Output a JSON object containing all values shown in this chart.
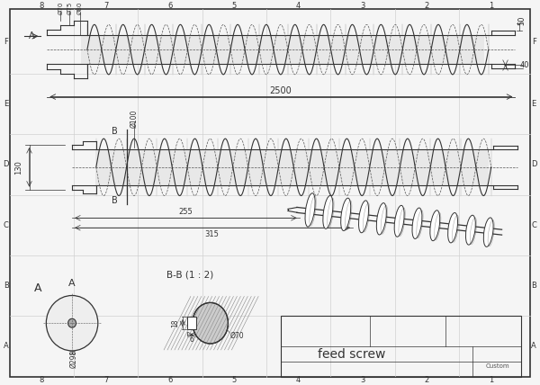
{
  "bg_color": "#f5f5f5",
  "grid_color": "#d0d0d0",
  "line_color": "#555555",
  "dark_line": "#333333",
  "title": "feed screw",
  "border_rows": [
    "F",
    "E",
    "D",
    "C",
    "B",
    "A"
  ],
  "border_cols": [
    "8",
    "7",
    "6",
    "5",
    "4",
    "3",
    "2",
    "1"
  ],
  "dims": {
    "d70": "Ø70",
    "d75": "Ø75",
    "d80": "Ø80",
    "d50": "50",
    "d40": "40",
    "d2500": "2500",
    "d100": "Ø100",
    "d130": "130",
    "d255": "255",
    "d315": "315",
    "d298": "Ø298",
    "d18": "18",
    "d6": "6",
    "d70b": "Ø70",
    "bb": "B-B (1 : 2)",
    "sec_a": "A",
    "sec_b": "B"
  }
}
